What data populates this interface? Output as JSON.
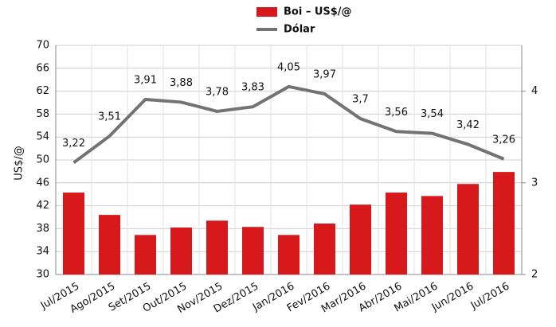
{
  "chart_data": {
    "type": "bar_line",
    "y_label": "US$/@",
    "categories": [
      "Jul/2015",
      "Ago/2015",
      "Set/2015",
      "Out/2015",
      "Nov/2015",
      "Dez/2015",
      "Jan/2016",
      "Fev/2016",
      "Mar/2016",
      "Abr/2016",
      "Mai/2016",
      "Jun/2016",
      "Jul/2016"
    ],
    "series": [
      {
        "name": "Boi – US$/@",
        "type": "bar",
        "color": "#d7191c",
        "values": [
          44.3,
          40.4,
          36.9,
          38.2,
          39.4,
          38.3,
          36.9,
          38.9,
          42.2,
          44.3,
          43.7,
          45.8,
          47.9
        ]
      },
      {
        "name": "Dólar",
        "type": "line",
        "axis": "y2",
        "color": "#737373",
        "values": [
          3.22,
          3.51,
          3.91,
          3.88,
          3.78,
          3.83,
          4.05,
          3.97,
          3.7,
          3.56,
          3.54,
          3.42,
          3.26
        ],
        "value_labels": [
          "3,22",
          "3,51",
          "3,91",
          "3,88",
          "3,78",
          "3,83",
          "4,05",
          "3,97",
          "3,7",
          "3,56",
          "3,54",
          "3,42",
          "3,26"
        ]
      }
    ],
    "ylim": [
      30,
      70
    ],
    "yticks": [
      30,
      34,
      38,
      42,
      46,
      50,
      54,
      58,
      62,
      66,
      70
    ],
    "y2lim": [
      2,
      4.5
    ],
    "y2ticks": [
      2,
      3,
      4
    ],
    "grid": true
  }
}
